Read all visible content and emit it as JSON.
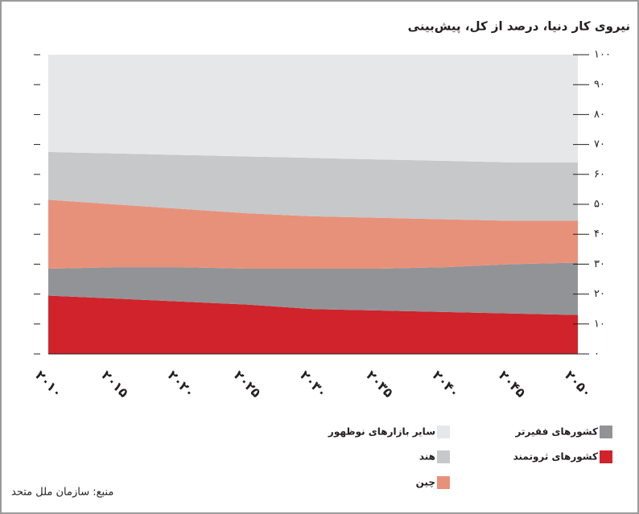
{
  "chart_data": {
    "type": "stacked-area",
    "title": "نیروی کار دنیا، درصد از کل، پیش‌بینی",
    "source": "منبع: سازمان ملل متحد",
    "categories": [
      "۲۰۱۰",
      "۲۰۱۵",
      "۲۰۲۰",
      "۲۰۲۵",
      "۲۰۳۰",
      "۲۰۳۵",
      "۲۰۴۰",
      "۲۰۴۵",
      "۲۰۵۰"
    ],
    "series": [
      {
        "name": "کشورهای ثروتمند",
        "color": "#d0232b",
        "values": [
          19.5,
          18.5,
          17.5,
          16.5,
          15,
          14.5,
          14,
          13.5,
          13
        ]
      },
      {
        "name": "کشورهای فقیرتر",
        "color": "#929397",
        "values": [
          9,
          10.5,
          11.5,
          12,
          13.5,
          14,
          15,
          16.5,
          17.5
        ]
      },
      {
        "name": "چین",
        "color": "#e8917a",
        "values": [
          23,
          21,
          19.5,
          18.5,
          17.5,
          17,
          16,
          14.5,
          14
        ]
      },
      {
        "name": "هند",
        "color": "#c7c8ca",
        "values": [
          16,
          17,
          18,
          19,
          19.5,
          19.5,
          19.5,
          19.5,
          19.5
        ]
      },
      {
        "name": "سایر بازارهای نوظهور",
        "color": "#e6e7e8",
        "values": [
          32.5,
          33,
          33.5,
          34,
          34.5,
          35,
          35.5,
          36,
          36
        ]
      }
    ],
    "ylim": [
      0,
      100
    ],
    "yticks": [
      {
        "value": 0,
        "label": "۰"
      },
      {
        "value": 10,
        "label": "۱۰"
      },
      {
        "value": 20,
        "label": "۲۰"
      },
      {
        "value": 30,
        "label": "۳۰"
      },
      {
        "value": 40,
        "label": "۴۰"
      },
      {
        "value": 50,
        "label": "۵۰"
      },
      {
        "value": 60,
        "label": "۶۰"
      },
      {
        "value": 70,
        "label": "۷۰"
      },
      {
        "value": 80,
        "label": "۸۰"
      },
      {
        "value": 90,
        "label": "۹۰"
      },
      {
        "value": 100,
        "label": "۱۰۰"
      }
    ]
  }
}
